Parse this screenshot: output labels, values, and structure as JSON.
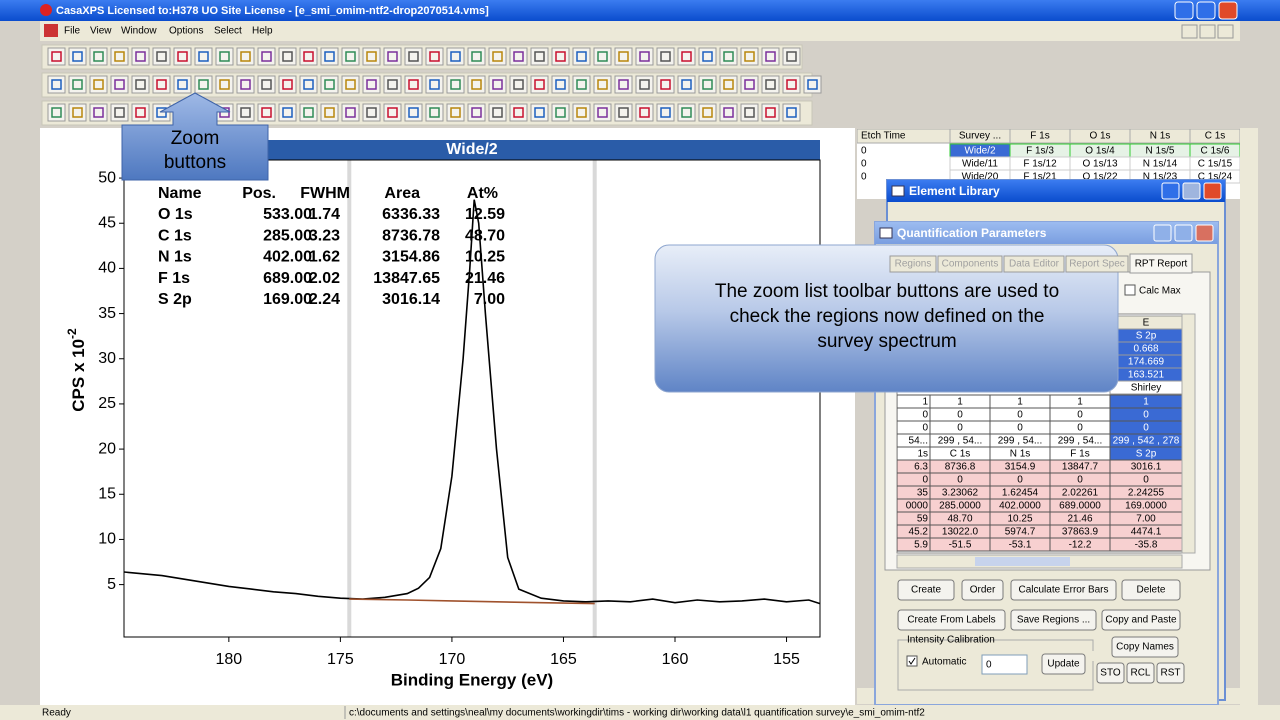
{
  "window": {
    "title": "CasaXPS Licensed to:H378 UO Site License - [e_smi_omim-ntf2-drop2070514.vms]"
  },
  "menu": [
    "File",
    "View",
    "Window",
    "Options",
    "Select",
    "Help"
  ],
  "callout": {
    "lines": [
      "Zoom",
      "buttons"
    ]
  },
  "tooltip": {
    "lines": [
      "The zoom list toolbar buttons are used to",
      "check the regions now defined on the",
      "survey spectrum"
    ]
  },
  "chart_data": {
    "type": "line",
    "title": "Wide/2",
    "x_label": "Binding Energy (eV)",
    "y_label": "CPS x 10",
    "y_label_exponent": "-2",
    "xlim": [
      184.7,
      153.5
    ],
    "xticks": [
      180,
      175,
      170,
      165,
      160,
      155
    ],
    "ylim": [
      -0.8,
      52
    ],
    "yticks": [
      5,
      10,
      15,
      20,
      25,
      30,
      35,
      40,
      45,
      50
    ],
    "region_lines": [
      174.6,
      163.6
    ],
    "series": [
      {
        "color": "#000000",
        "x": [
          184.7,
          183,
          182,
          181,
          180,
          179,
          178,
          177,
          176,
          175,
          174,
          173,
          172,
          171.5,
          171,
          170.5,
          170,
          169.5,
          169.2,
          169,
          168.8,
          168.5,
          168,
          167.5,
          167,
          166,
          165,
          164,
          163,
          162,
          161,
          160,
          159,
          158,
          157,
          156,
          155,
          154,
          153.5
        ],
        "values": [
          6.4,
          6.0,
          5.6,
          5.2,
          4.8,
          4.5,
          4.2,
          4.0,
          3.7,
          3.5,
          3.4,
          3.6,
          4.0,
          4.6,
          5.8,
          9,
          17,
          30,
          40,
          47.6,
          45,
          35,
          20,
          8,
          4.5,
          3.5,
          3.2,
          3.1,
          3.2,
          3.1,
          3.4,
          3.0,
          3.3,
          3.1,
          3.2,
          3.4,
          3.1,
          3.3,
          2.9
        ]
      },
      {
        "color": "#a0522d",
        "x": [
          174.6,
          172,
          170,
          168,
          166,
          163.6
        ],
        "values": [
          3.4,
          3.3,
          3.2,
          3.1,
          3.0,
          2.9
        ]
      }
    ],
    "peak_table": {
      "columns": [
        "Name",
        "Pos.",
        "FWHM",
        "Area",
        "At%"
      ],
      "rows": [
        [
          "O 1s",
          "533.00",
          "1.74",
          "6336.33",
          "12.59"
        ],
        [
          "C 1s",
          "285.00",
          "3.23",
          "8736.78",
          "48.70"
        ],
        [
          "N 1s",
          "402.00",
          "1.62",
          "3154.86",
          "10.25"
        ],
        [
          "F 1s",
          "689.00",
          "2.02",
          "13847.65",
          "21.46"
        ],
        [
          "S 2p",
          "169.00",
          "2.24",
          "3016.14",
          "7.00"
        ]
      ]
    }
  },
  "grid": {
    "header": [
      "Etch Time",
      "Survey ...",
      "F 1s",
      "O 1s",
      "N 1s",
      "C 1s"
    ],
    "rows": [
      [
        "0",
        "Wide/2",
        "F 1s/3",
        "O 1s/4",
        "N 1s/5",
        "C 1s/6"
      ],
      [
        "0",
        "Wide/11",
        "F 1s/12",
        "O 1s/13",
        "N 1s/14",
        "C 1s/15"
      ],
      [
        "0",
        "Wide/20",
        "F 1s/21",
        "O 1s/22",
        "N 1s/23",
        "C 1s/24"
      ]
    ]
  },
  "element_library": {
    "title": "Element Library"
  },
  "quant": {
    "title": "Quantification Parameters",
    "tabs": [
      "Regions",
      "Components",
      "Data Editor",
      "Report Spec",
      "RPT Report"
    ],
    "calc_max": "Calc Max",
    "s2p_column": [
      "E",
      "S 2p",
      "0.668",
      "174.669",
      "163.521",
      "Shirley"
    ],
    "rows": [
      [
        "1",
        "1",
        "1",
        "1",
        "1"
      ],
      [
        "0",
        "0",
        "0",
        "0",
        "0"
      ],
      [
        "0",
        "0",
        "0",
        "0",
        "0"
      ],
      [
        "54...",
        "299 , 54...",
        "299 , 54...",
        "299 , 54...",
        "299 , 542 , 278"
      ],
      [
        "1s",
        "C 1s",
        "N 1s",
        "F 1s",
        "S 2p"
      ],
      [
        "6.3",
        "8736.8",
        "3154.9",
        "13847.7",
        "3016.1"
      ],
      [
        "0",
        "0",
        "0",
        "0",
        "0"
      ],
      [
        "35",
        "3.23062",
        "1.62454",
        "2.02261",
        "2.24255"
      ],
      [
        "0000",
        "285.0000",
        "402.0000",
        "689.0000",
        "169.0000"
      ],
      [
        "59",
        "48.70",
        "10.25",
        "21.46",
        "7.00"
      ],
      [
        "45.2",
        "13022.0",
        "5974.7",
        "37863.9",
        "4474.1"
      ],
      [
        "5.9",
        "-51.5",
        "-53.1",
        "-12.2",
        "-35.8"
      ]
    ],
    "buttons": [
      "Create",
      "Order",
      "Calculate Error Bars",
      "Delete",
      "Create From Labels",
      "Save Regions ...",
      "Copy and Paste",
      "Copy Names",
      "Update",
      "STO",
      "RCL",
      "RST"
    ],
    "intensity_group": "Intensity Calibration",
    "automatic": "Automatic",
    "input_value": "0"
  },
  "status": {
    "ready": "Ready",
    "path": "c:\\documents and settings\\neal\\my documents\\workingdir\\tims - working dir\\working data\\l1 quantification survey\\e_smi_omim-ntf2"
  }
}
